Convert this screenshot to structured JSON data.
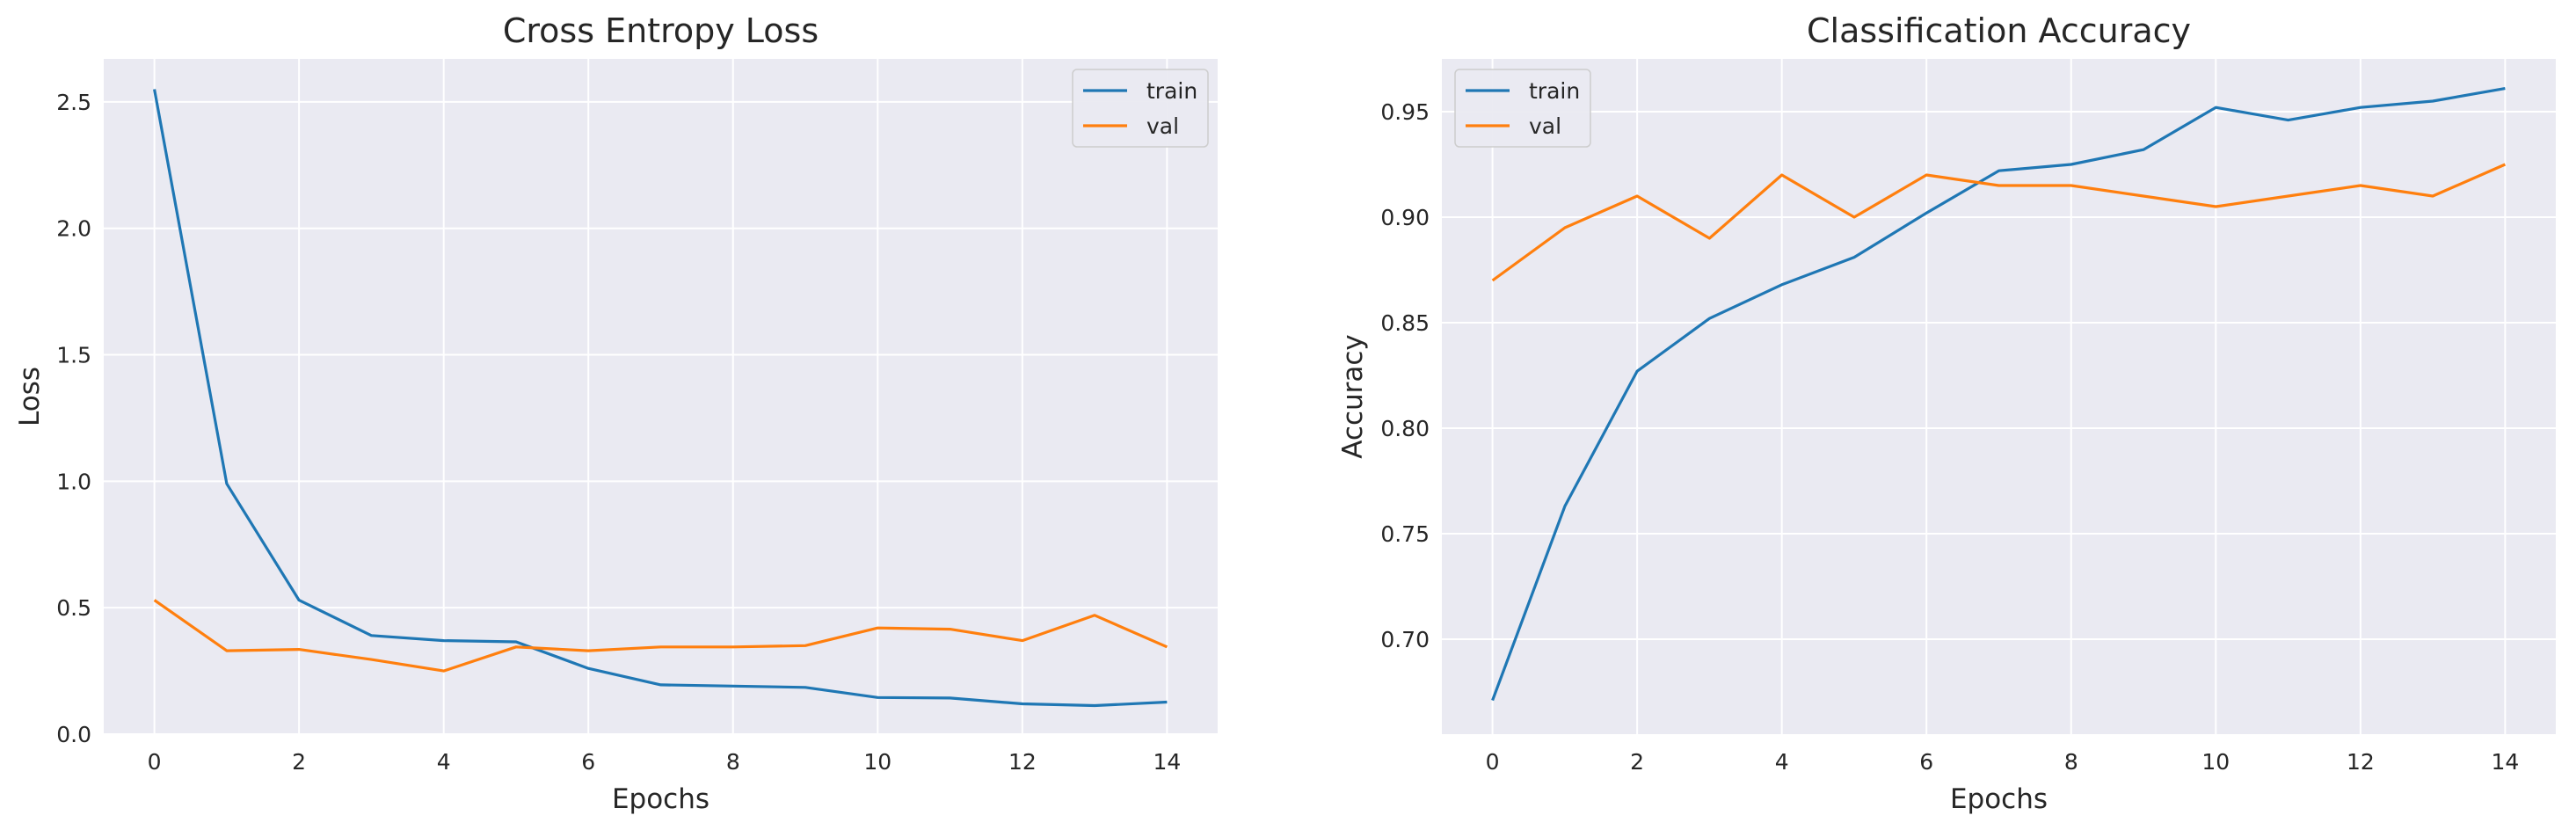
{
  "chart_data": [
    {
      "type": "line",
      "title": "Cross Entropy Loss",
      "xlabel": "Epochs",
      "ylabel": "Loss",
      "x": [
        0,
        1,
        2,
        3,
        4,
        5,
        6,
        7,
        8,
        9,
        10,
        11,
        12,
        13,
        14
      ],
      "xticks": [
        0,
        2,
        4,
        6,
        8,
        10,
        12,
        14
      ],
      "xlim": [
        -0.7,
        14.7
      ],
      "ylim": [
        0,
        2.67
      ],
      "yticks": [
        0.0,
        0.5,
        1.0,
        1.5,
        2.0,
        2.5
      ],
      "ytick_labels": [
        "0.0",
        "0.5",
        "1.0",
        "1.5",
        "2.0",
        "2.5"
      ],
      "grid": true,
      "legend_position": "upper right",
      "series": [
        {
          "name": "train",
          "color": "#1f77b4",
          "values": [
            2.55,
            0.99,
            0.53,
            0.39,
            0.37,
            0.365,
            0.26,
            0.195,
            0.19,
            0.185,
            0.145,
            0.143,
            0.12,
            0.113,
            0.127
          ]
        },
        {
          "name": "val",
          "color": "#ff7f0e",
          "values": [
            0.53,
            0.33,
            0.335,
            0.295,
            0.25,
            0.345,
            0.33,
            0.345,
            0.345,
            0.35,
            0.42,
            0.415,
            0.37,
            0.47,
            0.345
          ]
        }
      ]
    },
    {
      "type": "line",
      "title": "Classification Accuracy",
      "xlabel": "Epochs",
      "ylabel": "Accuracy",
      "x": [
        0,
        1,
        2,
        3,
        4,
        5,
        6,
        7,
        8,
        9,
        10,
        11,
        12,
        13,
        14
      ],
      "xticks": [
        0,
        2,
        4,
        6,
        8,
        10,
        12,
        14
      ],
      "xlim": [
        -0.7,
        14.7
      ],
      "ylim": [
        0.655,
        0.975
      ],
      "yticks": [
        0.7,
        0.75,
        0.8,
        0.85,
        0.9,
        0.95
      ],
      "ytick_labels": [
        "0.70",
        "0.75",
        "0.80",
        "0.85",
        "0.90",
        "0.95"
      ],
      "grid": true,
      "legend_position": "upper left",
      "series": [
        {
          "name": "train",
          "color": "#1f77b4",
          "values": [
            0.671,
            0.763,
            0.827,
            0.852,
            0.868,
            0.881,
            0.902,
            0.922,
            0.925,
            0.932,
            0.952,
            0.946,
            0.952,
            0.955,
            0.961
          ]
        },
        {
          "name": "val",
          "color": "#ff7f0e",
          "values": [
            0.87,
            0.895,
            0.91,
            0.89,
            0.92,
            0.9,
            0.92,
            0.915,
            0.915,
            0.91,
            0.905,
            0.91,
            0.915,
            0.91,
            0.925
          ]
        }
      ]
    }
  ]
}
